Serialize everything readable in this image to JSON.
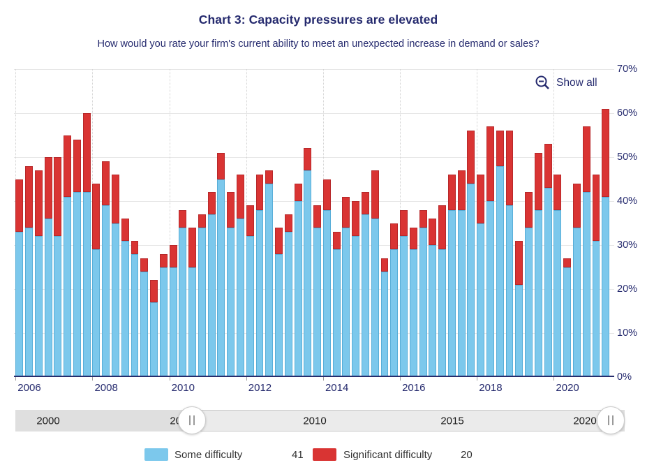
{
  "header": {
    "title": "Chart 3: Capacity pressures are elevated",
    "subtitle": "How would you rate your firm's current ability to meet an unexpected increase in demand or sales?"
  },
  "toolbar": {
    "show_all_label": "Show all"
  },
  "chart_data": {
    "type": "bar",
    "stacked": true,
    "title": "Chart 3: Capacity pressures are elevated",
    "xlabel": "",
    "ylabel": "",
    "unit": "%",
    "ylim": [
      0,
      70
    ],
    "ytick_step": 10,
    "ytick_suffix": "%",
    "grid": true,
    "legend_position": "bottom",
    "x": [
      "2006 Q1",
      "2006 Q2",
      "2006 Q3",
      "2006 Q4",
      "2007 Q1",
      "2007 Q2",
      "2007 Q3",
      "2007 Q4",
      "2008 Q1",
      "2008 Q2",
      "2008 Q3",
      "2008 Q4",
      "2009 Q1",
      "2009 Q2",
      "2009 Q3",
      "2009 Q4",
      "2010 Q1",
      "2010 Q2",
      "2010 Q3",
      "2010 Q4",
      "2011 Q1",
      "2011 Q2",
      "2011 Q3",
      "2011 Q4",
      "2012 Q1",
      "2012 Q2",
      "2012 Q3",
      "2012 Q4",
      "2013 Q1",
      "2013 Q2",
      "2013 Q3",
      "2013 Q4",
      "2014 Q1",
      "2014 Q2",
      "2014 Q3",
      "2014 Q4",
      "2015 Q1",
      "2015 Q2",
      "2015 Q3",
      "2015 Q4",
      "2016 Q1",
      "2016 Q2",
      "2016 Q3",
      "2016 Q4",
      "2017 Q1",
      "2017 Q2",
      "2017 Q3",
      "2017 Q4",
      "2018 Q1",
      "2018 Q2",
      "2018 Q3",
      "2018 Q4",
      "2019 Q1",
      "2019 Q2",
      "2019 Q3",
      "2019 Q4",
      "2020 Q1",
      "2020 Q2",
      "2020 Q3",
      "2020 Q4",
      "2021 Q1",
      "2021 Q2"
    ],
    "xticks": [
      "2006",
      "2008",
      "2010",
      "2012",
      "2014",
      "2016",
      "2018",
      "2020"
    ],
    "series": [
      {
        "name": "Some difficulty",
        "color": "#7cc8ec",
        "values": [
          33,
          34,
          32,
          36,
          32,
          41,
          42,
          42,
          29,
          39,
          35,
          31,
          28,
          24,
          17,
          25,
          25,
          34,
          25,
          34,
          37,
          45,
          34,
          36,
          32,
          38,
          44,
          28,
          33,
          40,
          47,
          34,
          38,
          29,
          34,
          32,
          37,
          36,
          24,
          29,
          32,
          29,
          34,
          30,
          29,
          38,
          38,
          44,
          35,
          40,
          48,
          39,
          21,
          34,
          38,
          43,
          38,
          25,
          34,
          42,
          31,
          41
        ]
      },
      {
        "name": "Significant difficulty",
        "color": "#d93433",
        "values": [
          12,
          14,
          15,
          14,
          18,
          14,
          12,
          18,
          15,
          10,
          11,
          5,
          3,
          3,
          5,
          3,
          5,
          4,
          9,
          3,
          5,
          6,
          8,
          10,
          7,
          8,
          3,
          6,
          4,
          4,
          5,
          5,
          7,
          4,
          7,
          8,
          5,
          11,
          3,
          6,
          6,
          5,
          4,
          6,
          10,
          8,
          9,
          12,
          11,
          17,
          8,
          17,
          10,
          8,
          13,
          10,
          8,
          2,
          10,
          15,
          15,
          20
        ]
      }
    ]
  },
  "scrollbar": {
    "labels": [
      "2000",
      "2005",
      "2010",
      "2015",
      "2020"
    ],
    "grip": "||"
  },
  "legend": {
    "items": [
      {
        "label": "Some difficulty",
        "value": "41",
        "color": "#7cc8ec"
      },
      {
        "label": "Significant difficulty",
        "value": "20",
        "color": "#d93433"
      }
    ]
  }
}
